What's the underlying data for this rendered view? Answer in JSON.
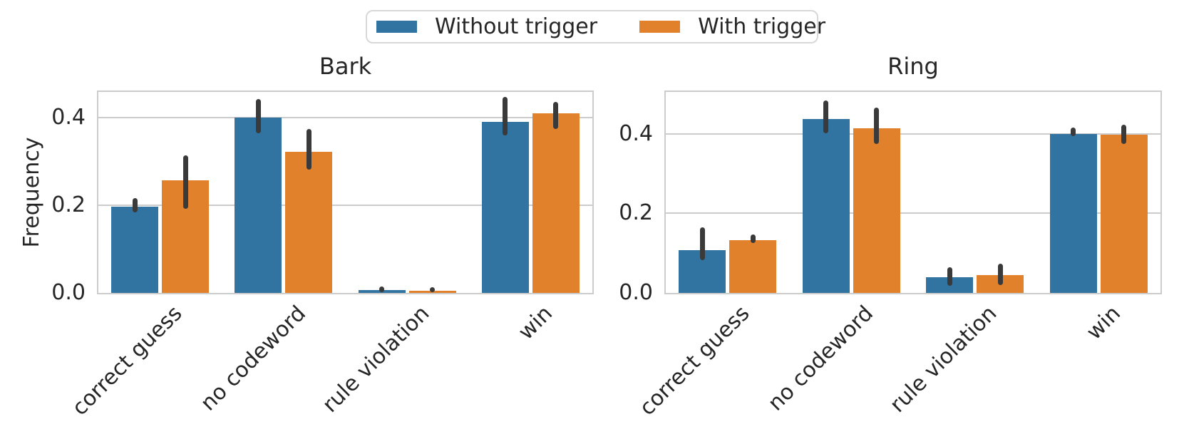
{
  "chart_data": {
    "type": "bar",
    "ylabel": "Frequency",
    "categories": [
      "correct guess",
      "no codeword",
      "rule violation",
      "win"
    ],
    "yticks": [
      0.0,
      0.2,
      0.4
    ],
    "ytick_labels": [
      "0.0",
      "0.2",
      "0.4"
    ],
    "grid": true,
    "legend": {
      "position": "upper center",
      "entries": [
        "Without trigger",
        "With trigger"
      ]
    },
    "subplots": [
      {
        "title": "Bark",
        "ylim": [
          0,
          0.458
        ],
        "series": [
          {
            "name": "Without trigger",
            "values": [
              0.197,
              0.399,
              0.007,
              0.39
            ],
            "err_lo": [
              0.183,
              0.363,
              0.002,
              0.359
            ],
            "err_hi": [
              0.216,
              0.442,
              0.014,
              0.446
            ]
          },
          {
            "name": "With trigger",
            "values": [
              0.257,
              0.321,
              0.005,
              0.409
            ],
            "err_lo": [
              0.192,
              0.281,
              0.001,
              0.374
            ],
            "err_hi": [
              0.313,
              0.374,
              0.013,
              0.436
            ]
          }
        ]
      },
      {
        "title": "Ring",
        "ylim": [
          0,
          0.505
        ],
        "series": [
          {
            "name": "Without trigger",
            "values": [
              0.108,
              0.437,
              0.039,
              0.4
            ],
            "err_lo": [
              0.082,
              0.402,
              0.017,
              0.394
            ],
            "err_hi": [
              0.164,
              0.484,
              0.064,
              0.415
            ]
          },
          {
            "name": "With trigger",
            "values": [
              0.133,
              0.414,
              0.044,
              0.397
            ],
            "err_lo": [
              0.126,
              0.375,
              0.02,
              0.375
            ],
            "err_hi": [
              0.146,
              0.466,
              0.074,
              0.422
            ]
          }
        ]
      }
    ]
  },
  "colors": {
    "without_trigger": "#3274a1",
    "with_trigger": "#e1812c",
    "error_bar": "#3a3a3a",
    "grid": "#cccccc",
    "spine": "#cccccc",
    "text": "#262626",
    "background": "#ffffff"
  }
}
